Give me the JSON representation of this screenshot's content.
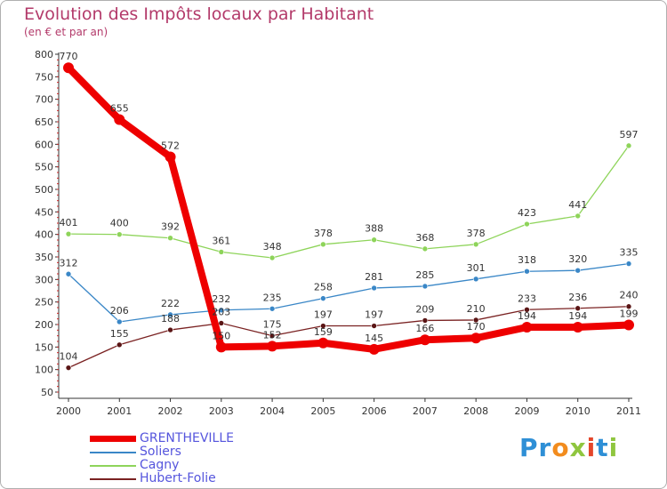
{
  "chart_data": {
    "type": "line",
    "title": "Evolution des Impôts locaux par Habitant",
    "subtitle": "(en € et par an)",
    "xlabel": "",
    "ylabel": "",
    "categories": [
      "2000",
      "2001",
      "2002",
      "2003",
      "2004",
      "2005",
      "2006",
      "2007",
      "2008",
      "2009",
      "2010",
      "2011"
    ],
    "ylim": [
      50,
      800
    ],
    "yticks": [
      50,
      100,
      150,
      200,
      250,
      300,
      350,
      400,
      450,
      500,
      550,
      600,
      650,
      700,
      750,
      800
    ],
    "grid": false,
    "legend_position": "bottom-left",
    "series": [
      {
        "name": "GRENTHEVILLE",
        "color": "#ee0000",
        "values": [
          770,
          655,
          572,
          150,
          152,
          159,
          145,
          166,
          170,
          194,
          194,
          199
        ],
        "labels": [
          "770",
          "655",
          "572",
          "150",
          "152",
          "159",
          "145",
          "166",
          "170",
          "194",
          "194",
          "199"
        ]
      },
      {
        "name": "Soliers",
        "color": "#3a87c7",
        "values": [
          312,
          206,
          222,
          232,
          235,
          258,
          281,
          285,
          301,
          318,
          320,
          335
        ],
        "labels": [
          "312",
          "206",
          "222",
          "232",
          "235",
          "258",
          "281",
          "285",
          "301",
          "318",
          "320",
          "335"
        ]
      },
      {
        "name": "Cagny",
        "color": "#8ed45a",
        "values": [
          401,
          400,
          392,
          361,
          348,
          378,
          388,
          368,
          378,
          423,
          441,
          597
        ],
        "labels": [
          "401",
          "400",
          "392",
          "361",
          "348",
          "378",
          "388",
          "368",
          "378",
          "423",
          "441",
          "597"
        ]
      },
      {
        "name": "Hubert-Folie",
        "color": "#7a2222",
        "values": [
          104,
          155,
          188,
          203,
          175,
          197,
          197,
          209,
          210,
          233,
          236,
          240
        ],
        "labels": [
          "104",
          "155",
          "188",
          "203",
          "175",
          "197",
          "197",
          "209",
          "210",
          "233",
          "236",
          "240"
        ]
      }
    ]
  },
  "brand": {
    "logo_text": "Proxiti"
  }
}
